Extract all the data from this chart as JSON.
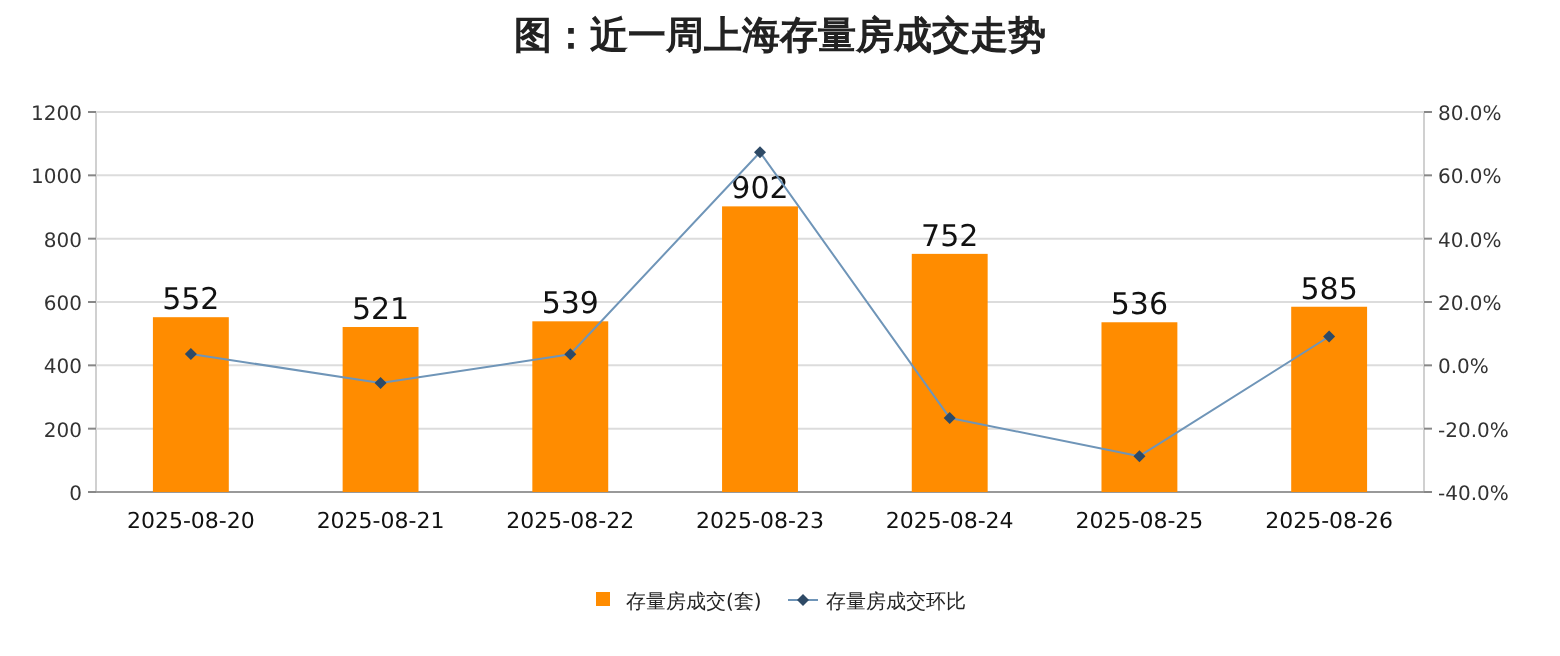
{
  "chart_data": {
    "type": "bar",
    "title": "图：近一周上海存量房成交走势",
    "categories": [
      "2025-08-20",
      "2025-08-21",
      "2025-08-22",
      "2025-08-23",
      "2025-08-24",
      "2025-08-25",
      "2025-08-26"
    ],
    "series": [
      {
        "name": "存量房成交(套)",
        "color": "#ff8c00",
        "values": [
          552,
          521,
          539,
          902,
          752,
          536,
          585
        ],
        "value_labels": [
          "552",
          "521",
          "539",
          "902",
          "752",
          "536",
          "585"
        ]
      },
      {
        "name": "存量房成交环比",
        "type": "line",
        "axis": "y2",
        "color": "#6f95b8",
        "values": [
          3.6,
          -5.6,
          3.5,
          67.3,
          -16.6,
          -28.7,
          9.1
        ]
      }
    ],
    "ylim": [
      0,
      1200
    ],
    "yticks": [
      0,
      200,
      400,
      600,
      800,
      1000,
      1200
    ],
    "y2lim": [
      -40,
      80
    ],
    "y2ticks": [
      {
        "value": -40,
        "label": "-40.0%"
      },
      {
        "value": -20,
        "label": "-20.0%"
      },
      {
        "value": 0,
        "label": "0.0%"
      },
      {
        "value": 20,
        "label": "20.0%"
      },
      {
        "value": 40,
        "label": "40.0%"
      },
      {
        "value": 60,
        "label": "60.0%"
      },
      {
        "value": 80,
        "label": "80.0%"
      }
    ],
    "grid": "y",
    "legend": "bottom",
    "marker": "diamond"
  }
}
